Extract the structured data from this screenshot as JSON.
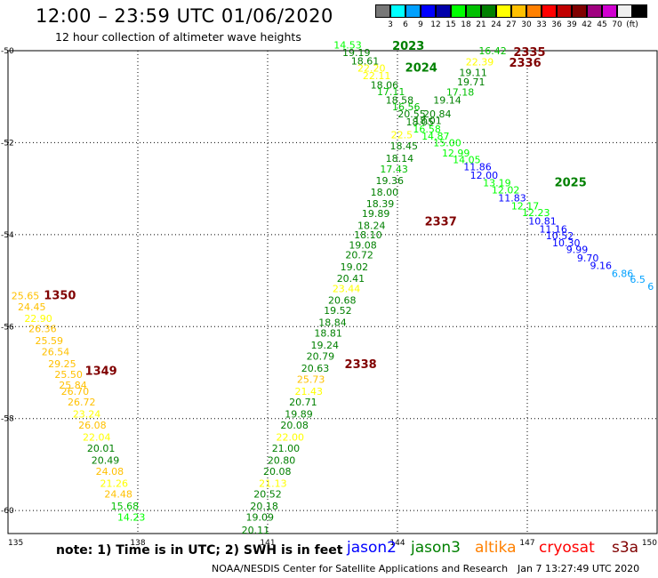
{
  "header": {
    "title": "12:00 – 23:59 UTC 01/06/2020",
    "subtitle": "12 hour collection of altimeter wave heights"
  },
  "color_scale": {
    "colors": [
      "#777777",
      "#00ffff",
      "#00a0ff",
      "#0000ff",
      "#0000aa",
      "#00ff00",
      "#00c000",
      "#008000",
      "#ffff00",
      "#ffc000",
      "#ff8000",
      "#ff0000",
      "#c00000",
      "#800000",
      "#a00080",
      "#d000d0",
      "#f0f0f0",
      "#000000"
    ],
    "labels": [
      "3",
      "6",
      "9",
      "12",
      "15",
      "18",
      "21",
      "24",
      "27",
      "30",
      "33",
      "36",
      "39",
      "42",
      "45",
      "70",
      "(ft)"
    ]
  },
  "map": {
    "lon_ticks": [
      {
        "lon": 135,
        "label": "135"
      },
      {
        "lon": 138,
        "label": "138"
      },
      {
        "lon": 141,
        "label": "141"
      },
      {
        "lon": 144,
        "label": "144"
      },
      {
        "lon": 147,
        "label": "147"
      },
      {
        "lon": 150,
        "label": "150"
      }
    ],
    "lat_ticks": [
      {
        "lat": -50,
        "label": "-50"
      },
      {
        "lat": -52,
        "label": "-52"
      },
      {
        "lat": -54,
        "label": "-54"
      },
      {
        "lat": -56,
        "label": "-56"
      },
      {
        "lat": -58,
        "label": "-58"
      },
      {
        "lat": -60,
        "label": "-60"
      }
    ],
    "pass_labels": [
      {
        "text": "2023",
        "color": "#008000",
        "lon": 144.25,
        "lat": -49.98
      },
      {
        "text": "2024",
        "color": "#008000",
        "lon": 144.55,
        "lat": -50.45
      },
      {
        "text": "2335",
        "color": "#800000",
        "lon": 147.05,
        "lat": -50.12
      },
      {
        "text": "2336",
        "color": "#800000",
        "lon": 146.95,
        "lat": -50.35
      },
      {
        "text": "2025",
        "color": "#008000",
        "lon": 148.0,
        "lat": -52.95
      },
      {
        "text": "2337",
        "color": "#800000",
        "lon": 145.0,
        "lat": -53.8
      },
      {
        "text": "1350",
        "color": "#800000",
        "lon": 136.2,
        "lat": -55.4
      },
      {
        "text": "2338",
        "color": "#800000",
        "lon": 143.15,
        "lat": -56.9
      },
      {
        "text": "1349",
        "color": "#800000",
        "lon": 137.15,
        "lat": -57.05
      }
    ],
    "values": [
      {
        "t": "14.53",
        "c": "#00ff00",
        "lon": 142.85,
        "lat": -49.95
      },
      {
        "t": "19.19",
        "c": "#008000",
        "lon": 143.05,
        "lat": -50.12
      },
      {
        "t": "18.61",
        "c": "#008000",
        "lon": 143.25,
        "lat": -50.3
      },
      {
        "t": "22.20",
        "c": "#ffff00",
        "lon": 143.4,
        "lat": -50.45
      },
      {
        "t": "22.11",
        "c": "#ffff00",
        "lon": 143.52,
        "lat": -50.62
      },
      {
        "t": "18.06",
        "c": "#008000",
        "lon": 143.7,
        "lat": -50.82
      },
      {
        "t": "17.11",
        "c": "#00c000",
        "lon": 143.85,
        "lat": -50.97
      },
      {
        "t": "18.58",
        "c": "#008000",
        "lon": 144.05,
        "lat": -51.15
      },
      {
        "t": "16.56",
        "c": "#00c000",
        "lon": 144.2,
        "lat": -51.3
      },
      {
        "t": "20.55",
        "c": "#008000",
        "lon": 144.33,
        "lat": -51.45
      },
      {
        "t": "18.05",
        "c": "#008000",
        "lon": 144.52,
        "lat": -51.62
      },
      {
        "t": "16.58",
        "c": "#00ff00",
        "lon": 144.68,
        "lat": -51.78
      },
      {
        "t": "14.87",
        "c": "#00ff00",
        "lon": 144.88,
        "lat": -51.93
      },
      {
        "t": "15.00",
        "c": "#00ff00",
        "lon": 145.15,
        "lat": -52.08
      },
      {
        "t": "12.99",
        "c": "#00ff00",
        "lon": 145.35,
        "lat": -52.3
      },
      {
        "t": "14.05",
        "c": "#00ff00",
        "lon": 145.6,
        "lat": -52.45
      },
      {
        "t": "11.86",
        "c": "#0000ff",
        "lon": 145.85,
        "lat": -52.6
      },
      {
        "t": "12.00",
        "c": "#0000ff",
        "lon": 146.0,
        "lat": -52.78
      },
      {
        "t": "13.19",
        "c": "#00ff00",
        "lon": 146.3,
        "lat": -52.95
      },
      {
        "t": "12.02",
        "c": "#00ff00",
        "lon": 146.5,
        "lat": -53.1
      },
      {
        "t": "11.83",
        "c": "#0000ff",
        "lon": 146.65,
        "lat": -53.28
      },
      {
        "t": "12.17",
        "c": "#00ff00",
        "lon": 146.95,
        "lat": -53.45
      },
      {
        "t": "12.23",
        "c": "#00ff00",
        "lon": 147.2,
        "lat": -53.6
      },
      {
        "t": "10.81",
        "c": "#0000ff",
        "lon": 147.35,
        "lat": -53.78
      },
      {
        "t": "11.16",
        "c": "#0000ff",
        "lon": 147.6,
        "lat": -53.95
      },
      {
        "t": "10.52",
        "c": "#0000ff",
        "lon": 147.75,
        "lat": -54.1
      },
      {
        "t": "10.30",
        "c": "#0000ff",
        "lon": 147.9,
        "lat": -54.25
      },
      {
        "t": "9.99",
        "c": "#0000ff",
        "lon": 148.15,
        "lat": -54.4
      },
      {
        "t": "9.70",
        "c": "#0000ff",
        "lon": 148.4,
        "lat": -54.58
      },
      {
        "t": "9.16",
        "c": "#0000ff",
        "lon": 148.7,
        "lat": -54.75
      },
      {
        "t": "6.86",
        "c": "#00a0ff",
        "lon": 149.2,
        "lat": -54.92
      },
      {
        "t": "6.5",
        "c": "#00a0ff",
        "lon": 149.55,
        "lat": -55.05
      },
      {
        "t": "6",
        "c": "#00a0ff",
        "lon": 149.85,
        "lat": -55.2
      },
      {
        "t": "16.42",
        "c": "#00c000",
        "lon": 146.2,
        "lat": -50.08
      },
      {
        "t": "22.39",
        "c": "#ffff00",
        "lon": 145.9,
        "lat": -50.32
      },
      {
        "t": "19.11",
        "c": "#008000",
        "lon": 145.75,
        "lat": -50.55
      },
      {
        "t": "19.71",
        "c": "#008000",
        "lon": 145.7,
        "lat": -50.75
      },
      {
        "t": "17.18",
        "c": "#00c000",
        "lon": 145.45,
        "lat": -50.98
      },
      {
        "t": "19.14",
        "c": "#008000",
        "lon": 145.15,
        "lat": -51.15
      },
      {
        "t": "20.84",
        "c": "#008000",
        "lon": 144.92,
        "lat": -51.45
      },
      {
        "t": "18.01",
        "c": "#008000",
        "lon": 144.7,
        "lat": -51.6
      },
      {
        "t": "22.5",
        "c": "#ffff00",
        "lon": 144.1,
        "lat": -51.9
      },
      {
        "t": "18.45",
        "c": "#008000",
        "lon": 144.15,
        "lat": -52.15
      },
      {
        "t": "18.14",
        "c": "#008000",
        "lon": 144.05,
        "lat": -52.42
      },
      {
        "t": "17.43",
        "c": "#00c000",
        "lon": 143.92,
        "lat": -52.65
      },
      {
        "t": "19.36",
        "c": "#008000",
        "lon": 143.82,
        "lat": -52.9
      },
      {
        "t": "18.00",
        "c": "#008000",
        "lon": 143.7,
        "lat": -53.15
      },
      {
        "t": "18.39",
        "c": "#008000",
        "lon": 143.6,
        "lat": -53.4
      },
      {
        "t": "19.89",
        "c": "#008000",
        "lon": 143.5,
        "lat": -53.62
      },
      {
        "t": "18.24",
        "c": "#008000",
        "lon": 143.4,
        "lat": -53.88
      },
      {
        "t": "18.10",
        "c": "#008000",
        "lon": 143.32,
        "lat": -54.08
      },
      {
        "t": "19.08",
        "c": "#008000",
        "lon": 143.2,
        "lat": -54.3
      },
      {
        "t": "20.72",
        "c": "#008000",
        "lon": 143.12,
        "lat": -54.52
      },
      {
        "t": "19.02",
        "c": "#008000",
        "lon": 143.0,
        "lat": -54.78
      },
      {
        "t": "20.41",
        "c": "#008000",
        "lon": 142.92,
        "lat": -55.03
      },
      {
        "t": "23.44",
        "c": "#ffff00",
        "lon": 142.82,
        "lat": -55.25
      },
      {
        "t": "20.68",
        "c": "#008000",
        "lon": 142.72,
        "lat": -55.5
      },
      {
        "t": "19.52",
        "c": "#008000",
        "lon": 142.62,
        "lat": -55.72
      },
      {
        "t": "18.84",
        "c": "#008000",
        "lon": 142.5,
        "lat": -55.98
      },
      {
        "t": "18.81",
        "c": "#008000",
        "lon": 142.4,
        "lat": -56.22
      },
      {
        "t": "19.24",
        "c": "#008000",
        "lon": 142.32,
        "lat": -56.48
      },
      {
        "t": "20.79",
        "c": "#008000",
        "lon": 142.22,
        "lat": -56.72
      },
      {
        "t": "20.63",
        "c": "#008000",
        "lon": 142.1,
        "lat": -56.98
      },
      {
        "t": "25.73",
        "c": "#ffc000",
        "lon": 142.0,
        "lat": -57.22
      },
      {
        "t": "21.43",
        "c": "#ffff00",
        "lon": 141.95,
        "lat": -57.48
      },
      {
        "t": "20.71",
        "c": "#008000",
        "lon": 141.82,
        "lat": -57.72
      },
      {
        "t": "19.89",
        "c": "#008000",
        "lon": 141.72,
        "lat": -57.98
      },
      {
        "t": "20.08",
        "c": "#008000",
        "lon": 141.62,
        "lat": -58.22
      },
      {
        "t": "22.00",
        "c": "#ffff00",
        "lon": 141.52,
        "lat": -58.48
      },
      {
        "t": "21.00",
        "c": "#008000",
        "lon": 141.42,
        "lat": -58.72
      },
      {
        "t": "20.80",
        "c": "#008000",
        "lon": 141.32,
        "lat": -58.98
      },
      {
        "t": "20.08",
        "c": "#008000",
        "lon": 141.22,
        "lat": -59.22
      },
      {
        "t": "21.13",
        "c": "#ffff00",
        "lon": 141.12,
        "lat": -59.48
      },
      {
        "t": "20.52",
        "c": "#008000",
        "lon": 141.0,
        "lat": -59.72
      },
      {
        "t": "20.18",
        "c": "#008000",
        "lon": 140.92,
        "lat": -59.98
      },
      {
        "t": "19.09",
        "c": "#008000",
        "lon": 140.82,
        "lat": -60.22
      },
      {
        "t": "20.11",
        "c": "#008000",
        "lon": 140.72,
        "lat": -60.5
      },
      {
        "t": "25.65",
        "c": "#ffc000",
        "lon": 135.4,
        "lat": -55.4
      },
      {
        "t": "24.45",
        "c": "#ffc000",
        "lon": 135.55,
        "lat": -55.65
      },
      {
        "t": "22.90",
        "c": "#ffff00",
        "lon": 135.7,
        "lat": -55.9
      },
      {
        "t": "26.36",
        "c": "#ffc000",
        "lon": 135.8,
        "lat": -56.12
      },
      {
        "t": "25.59",
        "c": "#ffc000",
        "lon": 135.95,
        "lat": -56.38
      },
      {
        "t": "26.54",
        "c": "#ffc000",
        "lon": 136.1,
        "lat": -56.62
      },
      {
        "t": "29.25",
        "c": "#ffc000",
        "lon": 136.25,
        "lat": -56.88
      },
      {
        "t": "25.50",
        "c": "#ffc000",
        "lon": 136.4,
        "lat": -57.12
      },
      {
        "t": "25.84",
        "c": "#ffc000",
        "lon": 136.5,
        "lat": -57.35
      },
      {
        "t": "26.70",
        "c": "#ffc000",
        "lon": 136.55,
        "lat": -57.48
      },
      {
        "t": "26.72",
        "c": "#ffc000",
        "lon": 136.7,
        "lat": -57.72
      },
      {
        "t": "23.24",
        "c": "#ffff00",
        "lon": 136.82,
        "lat": -57.98
      },
      {
        "t": "26.08",
        "c": "#ffc000",
        "lon": 136.95,
        "lat": -58.22
      },
      {
        "t": "22.04",
        "c": "#ffff00",
        "lon": 137.05,
        "lat": -58.48
      },
      {
        "t": "20.01",
        "c": "#008000",
        "lon": 137.15,
        "lat": -58.72
      },
      {
        "t": "20.49",
        "c": "#008000",
        "lon": 137.25,
        "lat": -58.98
      },
      {
        "t": "24.08",
        "c": "#ffc000",
        "lon": 137.35,
        "lat": -59.22
      },
      {
        "t": "21.26",
        "c": "#ffff00",
        "lon": 137.45,
        "lat": -59.48
      },
      {
        "t": "24.48",
        "c": "#ffc000",
        "lon": 137.55,
        "lat": -59.72
      },
      {
        "t": "15.68",
        "c": "#00c000",
        "lon": 137.7,
        "lat": -59.98
      },
      {
        "t": "14.23",
        "c": "#00ff00",
        "lon": 137.85,
        "lat": -60.22
      }
    ]
  },
  "footer": {
    "note": "note:  1) Time is in UTC;  2) SWH is in feet",
    "legend": [
      {
        "name": "jason2",
        "color": "#0000ff"
      },
      {
        "name": "jason3",
        "color": "#008000"
      },
      {
        "name": "altika",
        "color": "#ff8000"
      },
      {
        "name": "cryosat",
        "color": "#ff0000"
      },
      {
        "name": "s3a",
        "color": "#800000"
      }
    ],
    "credit": "NOAA/NESDIS Center for Satellite Applications and Research",
    "timestamp": "Jan  7 13:27:49 UTC 2020"
  }
}
